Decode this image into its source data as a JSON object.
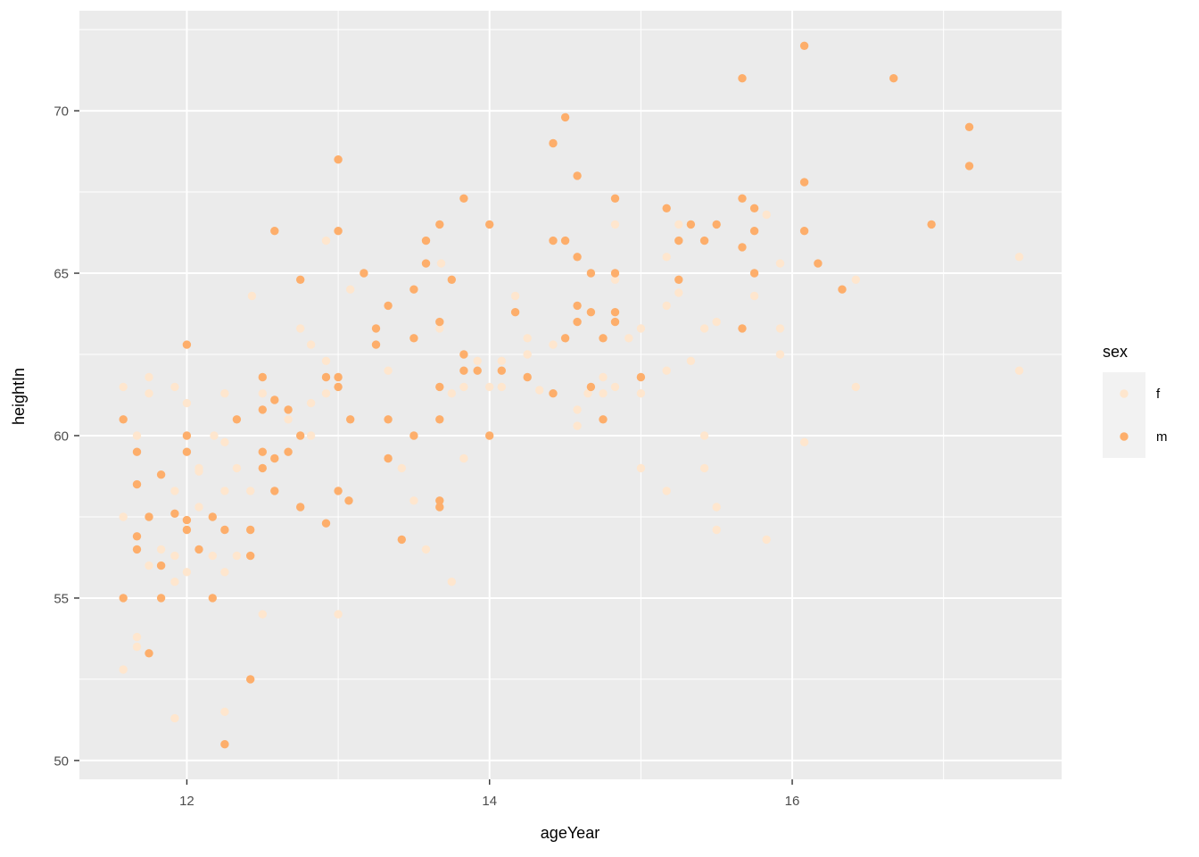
{
  "chart_data": {
    "type": "scatter",
    "title": "",
    "xlabel": "ageYear",
    "ylabel": "heightIn",
    "x_ticks": [
      12,
      14,
      16
    ],
    "y_ticks": [
      50,
      55,
      60,
      65,
      70
    ],
    "x_minor": [
      13,
      15,
      17
    ],
    "y_minor": [
      52.5,
      57.5,
      62.5,
      67.5,
      72.5
    ],
    "xlim": [
      11.29,
      17.78
    ],
    "ylim": [
      49.42,
      73.08
    ],
    "grid": true,
    "panel_bg": "#EBEBEB",
    "grid_color": "#FFFFFF",
    "tick_color": "#333333",
    "legend_key_bg": "#F2F2F2",
    "point_radius": 4.7,
    "legend": {
      "title": "sex",
      "position": "right",
      "entries": [
        {
          "label": "f",
          "color": "#FEE6CE"
        },
        {
          "label": "m",
          "color": "#FDAE6B"
        }
      ]
    },
    "series": [
      {
        "name": "f",
        "color": "#FEE6CE",
        "points": [
          [
            12.92,
            66.0
          ],
          [
            13.68,
            65.3
          ],
          [
            15.83,
            66.8
          ],
          [
            14.83,
            66.5
          ],
          [
            15.25,
            66.5
          ],
          [
            15.17,
            65.5
          ],
          [
            15.92,
            65.3
          ],
          [
            17.5,
            65.5
          ],
          [
            12.43,
            64.3
          ],
          [
            12.75,
            63.3
          ],
          [
            12.82,
            62.8
          ],
          [
            12.92,
            62.3
          ],
          [
            11.75,
            61.8
          ],
          [
            11.58,
            61.5
          ],
          [
            11.92,
            61.5
          ],
          [
            11.75,
            61.3
          ],
          [
            12.25,
            61.3
          ],
          [
            12.5,
            61.3
          ],
          [
            12.0,
            61.0
          ],
          [
            12.82,
            61.0
          ],
          [
            12.67,
            60.5
          ],
          [
            12.18,
            60.0
          ],
          [
            12.82,
            60.0
          ],
          [
            11.67,
            60.0
          ],
          [
            12.25,
            59.8
          ],
          [
            12.08,
            59.0
          ],
          [
            12.33,
            59.0
          ],
          [
            12.08,
            58.9
          ],
          [
            11.92,
            58.3
          ],
          [
            12.25,
            58.3
          ],
          [
            12.42,
            58.3
          ],
          [
            12.08,
            57.8
          ],
          [
            11.58,
            57.5
          ],
          [
            14.83,
            64.8
          ],
          [
            13.08,
            64.5
          ],
          [
            14.17,
            64.3
          ],
          [
            13.67,
            63.3
          ],
          [
            14.25,
            63.0
          ],
          [
            14.42,
            62.8
          ],
          [
            14.25,
            62.5
          ],
          [
            13.92,
            62.3
          ],
          [
            14.08,
            62.3
          ],
          [
            13.33,
            62.0
          ],
          [
            12.92,
            61.3
          ],
          [
            13.75,
            61.3
          ],
          [
            13.83,
            61.5
          ],
          [
            14.0,
            61.5
          ],
          [
            14.08,
            61.5
          ],
          [
            14.33,
            61.4
          ],
          [
            13.42,
            59.0
          ],
          [
            13.83,
            59.3
          ],
          [
            13.5,
            58.0
          ],
          [
            15.25,
            64.4
          ],
          [
            15.75,
            64.3
          ],
          [
            15.17,
            64.0
          ],
          [
            15.0,
            63.3
          ],
          [
            15.42,
            63.3
          ],
          [
            15.5,
            63.5
          ],
          [
            15.92,
            63.3
          ],
          [
            14.92,
            63.0
          ],
          [
            15.92,
            62.5
          ],
          [
            15.33,
            62.3
          ],
          [
            15.17,
            62.0
          ],
          [
            14.75,
            61.8
          ],
          [
            14.83,
            61.5
          ],
          [
            14.65,
            61.3
          ],
          [
            14.75,
            61.3
          ],
          [
            15.0,
            61.3
          ],
          [
            14.58,
            60.8
          ],
          [
            14.58,
            60.3
          ],
          [
            15.42,
            60.0
          ],
          [
            16.08,
            59.8
          ],
          [
            15.0,
            59.0
          ],
          [
            15.42,
            59.0
          ],
          [
            15.17,
            58.3
          ],
          [
            15.5,
            57.8
          ],
          [
            16.42,
            64.8
          ],
          [
            17.5,
            62.0
          ],
          [
            16.42,
            61.5
          ],
          [
            11.83,
            56.5
          ],
          [
            11.92,
            56.3
          ],
          [
            12.17,
            56.3
          ],
          [
            12.33,
            56.3
          ],
          [
            11.75,
            56.0
          ],
          [
            12.0,
            55.8
          ],
          [
            12.25,
            55.8
          ],
          [
            11.92,
            55.5
          ],
          [
            12.5,
            54.5
          ],
          [
            11.67,
            53.8
          ],
          [
            11.67,
            53.5
          ],
          [
            11.58,
            52.8
          ],
          [
            11.92,
            51.3
          ],
          [
            12.25,
            51.5
          ],
          [
            13.58,
            56.5
          ],
          [
            13.75,
            55.5
          ],
          [
            13.0,
            54.5
          ],
          [
            15.5,
            57.1
          ],
          [
            15.83,
            56.8
          ]
        ]
      },
      {
        "name": "m",
        "color": "#FDAE6B",
        "points": [
          [
            12.58,
            66.3
          ],
          [
            14.5,
            69.8
          ],
          [
            14.42,
            69.0
          ],
          [
            13.0,
            68.5
          ],
          [
            13.83,
            67.3
          ],
          [
            13.67,
            66.5
          ],
          [
            14.0,
            66.5
          ],
          [
            13.0,
            66.3
          ],
          [
            13.58,
            66.0
          ],
          [
            14.42,
            66.0
          ],
          [
            14.5,
            66.0
          ],
          [
            13.58,
            65.3
          ],
          [
            16.08,
            72.0
          ],
          [
            15.67,
            71.0
          ],
          [
            14.58,
            68.0
          ],
          [
            16.08,
            67.8
          ],
          [
            14.83,
            67.3
          ],
          [
            15.67,
            67.3
          ],
          [
            15.17,
            67.0
          ],
          [
            15.75,
            67.0
          ],
          [
            15.33,
            66.5
          ],
          [
            15.5,
            66.5
          ],
          [
            15.75,
            66.3
          ],
          [
            16.08,
            66.3
          ],
          [
            15.25,
            66.0
          ],
          [
            15.42,
            66.0
          ],
          [
            15.67,
            65.8
          ],
          [
            14.58,
            65.5
          ],
          [
            16.67,
            71.0
          ],
          [
            17.17,
            69.5
          ],
          [
            17.17,
            68.3
          ],
          [
            16.92,
            66.5
          ],
          [
            16.17,
            65.3
          ],
          [
            12.75,
            64.8
          ],
          [
            12.0,
            62.8
          ],
          [
            12.5,
            61.8
          ],
          [
            12.58,
            61.1
          ],
          [
            12.5,
            60.8
          ],
          [
            12.67,
            60.8
          ],
          [
            11.58,
            60.5
          ],
          [
            12.33,
            60.5
          ],
          [
            12.0,
            60.0
          ],
          [
            12.75,
            60.0
          ],
          [
            11.67,
            59.5
          ],
          [
            12.0,
            59.5
          ],
          [
            12.5,
            59.5
          ],
          [
            12.67,
            59.5
          ],
          [
            12.58,
            59.3
          ],
          [
            12.5,
            59.0
          ],
          [
            11.83,
            58.8
          ],
          [
            11.67,
            58.5
          ],
          [
            12.58,
            58.3
          ],
          [
            12.75,
            57.8
          ],
          [
            11.75,
            57.5
          ],
          [
            11.92,
            57.6
          ],
          [
            12.17,
            57.5
          ],
          [
            12.0,
            57.4
          ],
          [
            13.17,
            65.0
          ],
          [
            14.83,
            65.0
          ],
          [
            13.75,
            64.8
          ],
          [
            13.5,
            64.5
          ],
          [
            13.33,
            64.0
          ],
          [
            14.17,
            63.8
          ],
          [
            13.67,
            63.5
          ],
          [
            13.25,
            63.3
          ],
          [
            14.5,
            63.0
          ],
          [
            13.5,
            63.0
          ],
          [
            13.25,
            62.8
          ],
          [
            13.83,
            62.5
          ],
          [
            13.83,
            62.0
          ],
          [
            13.92,
            62.0
          ],
          [
            14.08,
            62.0
          ],
          [
            12.92,
            61.8
          ],
          [
            13.0,
            61.8
          ],
          [
            14.25,
            61.8
          ],
          [
            13.0,
            61.5
          ],
          [
            13.67,
            61.5
          ],
          [
            14.42,
            61.3
          ],
          [
            13.08,
            60.5
          ],
          [
            13.33,
            60.5
          ],
          [
            13.67,
            60.5
          ],
          [
            13.5,
            60.0
          ],
          [
            14.0,
            60.0
          ],
          [
            13.33,
            59.3
          ],
          [
            13.0,
            58.3
          ],
          [
            13.07,
            58.0
          ],
          [
            13.67,
            58.0
          ],
          [
            13.67,
            57.8
          ],
          [
            14.67,
            65.0
          ],
          [
            15.75,
            65.0
          ],
          [
            15.25,
            64.8
          ],
          [
            14.58,
            64.0
          ],
          [
            14.67,
            63.8
          ],
          [
            14.83,
            63.8
          ],
          [
            14.58,
            63.5
          ],
          [
            14.83,
            63.5
          ],
          [
            15.67,
            63.3
          ],
          [
            14.75,
            63.0
          ],
          [
            15.0,
            61.8
          ],
          [
            14.67,
            61.5
          ],
          [
            14.75,
            60.5
          ],
          [
            16.33,
            64.5
          ],
          [
            12.0,
            57.1
          ],
          [
            12.25,
            57.1
          ],
          [
            12.42,
            57.1
          ],
          [
            11.67,
            56.9
          ],
          [
            11.67,
            56.5
          ],
          [
            12.08,
            56.5
          ],
          [
            12.42,
            56.3
          ],
          [
            11.83,
            56.0
          ],
          [
            11.58,
            55.0
          ],
          [
            11.83,
            55.0
          ],
          [
            12.17,
            55.0
          ],
          [
            11.75,
            53.3
          ],
          [
            12.42,
            52.5
          ],
          [
            12.25,
            50.5
          ],
          [
            12.92,
            57.3
          ],
          [
            13.42,
            56.8
          ]
        ]
      }
    ]
  }
}
